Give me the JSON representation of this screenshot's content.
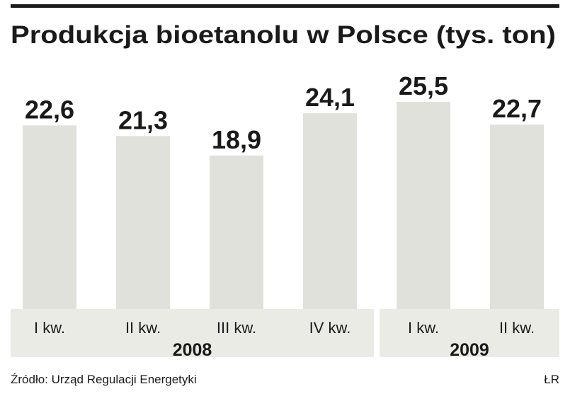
{
  "chart_data": {
    "type": "bar",
    "title": "Produkcja bioetanolu w Polsce (tys. ton)",
    "groups": [
      {
        "name": "2008",
        "categories": [
          "I kw.",
          "II kw.",
          "III kw.",
          "IV kw."
        ]
      },
      {
        "name": "2009",
        "categories": [
          "I kw.",
          "II kw."
        ]
      }
    ],
    "values": [
      22.6,
      21.3,
      18.9,
      24.1,
      25.5,
      22.7
    ],
    "value_labels": [
      "22,6",
      "21,3",
      "18,9",
      "24,1",
      "25,5",
      "22,7"
    ],
    "color": "#e1e1db",
    "source": "Źródło: Urząd Regulacji Energetyki",
    "credit": "ŁR"
  }
}
